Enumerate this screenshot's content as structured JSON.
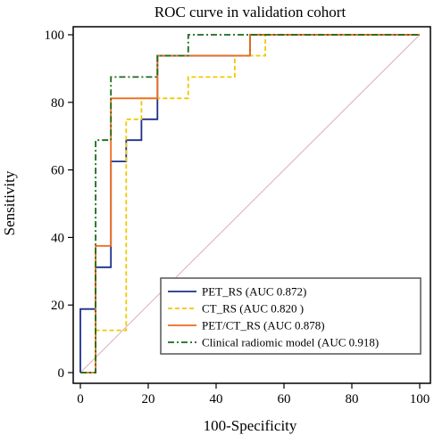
{
  "chart_data": {
    "type": "line",
    "title": "ROC curve in validation cohort",
    "xlabel": "100-Specificity",
    "ylabel": "Sensitivity",
    "xlim": [
      0,
      100
    ],
    "ylim": [
      0,
      100
    ],
    "xticks": [
      0,
      20,
      40,
      60,
      80,
      100
    ],
    "yticks": [
      0,
      20,
      40,
      60,
      80,
      100
    ],
    "xtick_labels": [
      "0",
      "20",
      "40",
      "60",
      "80",
      "100"
    ],
    "ytick_labels": [
      "0",
      "20",
      "40",
      "60",
      "80",
      "100"
    ],
    "grid": false,
    "legend_position": "bottom-right",
    "reference_line": {
      "x": [
        0,
        100
      ],
      "y": [
        0,
        100
      ],
      "color": "#d4b0b8"
    },
    "series": [
      {
        "name": "PET_RS (AUC 0.872)",
        "color": "#1f2f8a",
        "dash": "solid",
        "x": [
          0,
          0,
          4.5,
          4.5,
          9,
          9,
          13.5,
          13.5,
          18,
          18,
          22.7,
          22.7,
          50,
          50,
          100
        ],
        "y": [
          0,
          18.8,
          18.8,
          31.2,
          31.2,
          62.5,
          62.5,
          68.8,
          68.8,
          75,
          75,
          93.8,
          93.8,
          100,
          100
        ]
      },
      {
        "name": "CT_RS (AUC 0.820 )",
        "color": "#f0c800",
        "dash": "dashed",
        "x": [
          0,
          4.5,
          4.5,
          13.5,
          13.5,
          18,
          18,
          22.7,
          22.7,
          31.8,
          31.8,
          45.5,
          45.5,
          54.5,
          54.5,
          100
        ],
        "y": [
          0,
          0,
          12.5,
          12.5,
          75,
          75,
          81.2,
          81.2,
          81.2,
          81.2,
          87.5,
          87.5,
          93.8,
          93.8,
          100,
          100
        ]
      },
      {
        "name": "PET/CT_RS (AUC 0.878)",
        "color": "#f06a1a",
        "dash": "solid",
        "x": [
          0,
          4.5,
          4.5,
          9,
          9,
          18,
          18,
          22.7,
          22.7,
          50,
          50,
          100
        ],
        "y": [
          0,
          0,
          37.5,
          37.5,
          81.2,
          81.2,
          81.2,
          81.2,
          93.8,
          93.8,
          100,
          100
        ]
      },
      {
        "name": "Clinical radiomic model (AUC 0.918)",
        "color": "#1a6a1a",
        "dash": "dashdot",
        "x": [
          0,
          4.5,
          4.5,
          9,
          9,
          22.7,
          22.7,
          31.8,
          31.8,
          100
        ],
        "y": [
          0,
          0,
          68.8,
          68.8,
          87.5,
          87.5,
          93.8,
          93.8,
          100,
          100
        ]
      }
    ]
  }
}
